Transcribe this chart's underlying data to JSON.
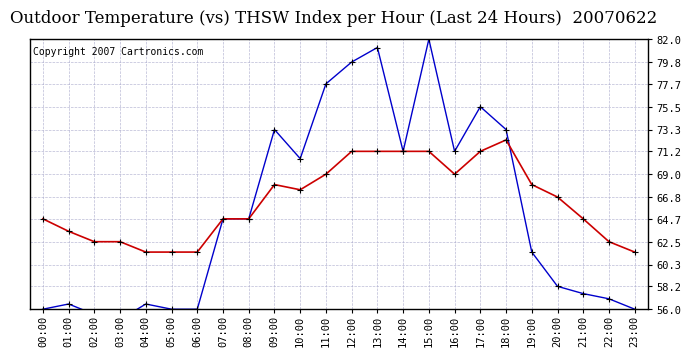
{
  "title": "Outdoor Temperature (vs) THSW Index per Hour (Last 24 Hours)  20070622",
  "copyright": "Copyright 2007 Cartronics.com",
  "hours": [
    0,
    1,
    2,
    3,
    4,
    5,
    6,
    7,
    8,
    9,
    10,
    11,
    12,
    13,
    14,
    15,
    16,
    17,
    18,
    19,
    20,
    21,
    22,
    23
  ],
  "temp": [
    64.7,
    63.5,
    62.5,
    62.5,
    61.5,
    61.5,
    61.5,
    64.7,
    64.7,
    68.0,
    67.5,
    69.0,
    71.2,
    71.2,
    71.2,
    71.2,
    69.0,
    71.2,
    72.3,
    68.0,
    66.8,
    64.7,
    62.5,
    61.5
  ],
  "thsw": [
    56.0,
    56.5,
    55.5,
    55.0,
    56.5,
    56.0,
    56.0,
    64.7,
    64.7,
    73.3,
    70.5,
    77.7,
    79.8,
    81.2,
    71.2,
    82.0,
    71.2,
    75.5,
    73.3,
    61.5,
    58.2,
    57.5,
    57.0,
    56.0
  ],
  "ylim": [
    56.0,
    82.0
  ],
  "yticks": [
    56.0,
    58.2,
    60.3,
    62.5,
    64.7,
    66.8,
    69.0,
    71.2,
    73.3,
    75.5,
    77.7,
    79.8,
    82.0
  ],
  "temp_color": "#cc0000",
  "thsw_color": "#0000cc",
  "bg_color": "#ffffff",
  "grid_color": "#aaaacc",
  "title_fontsize": 12,
  "copyright_fontsize": 7,
  "axis_fontsize": 7.5
}
